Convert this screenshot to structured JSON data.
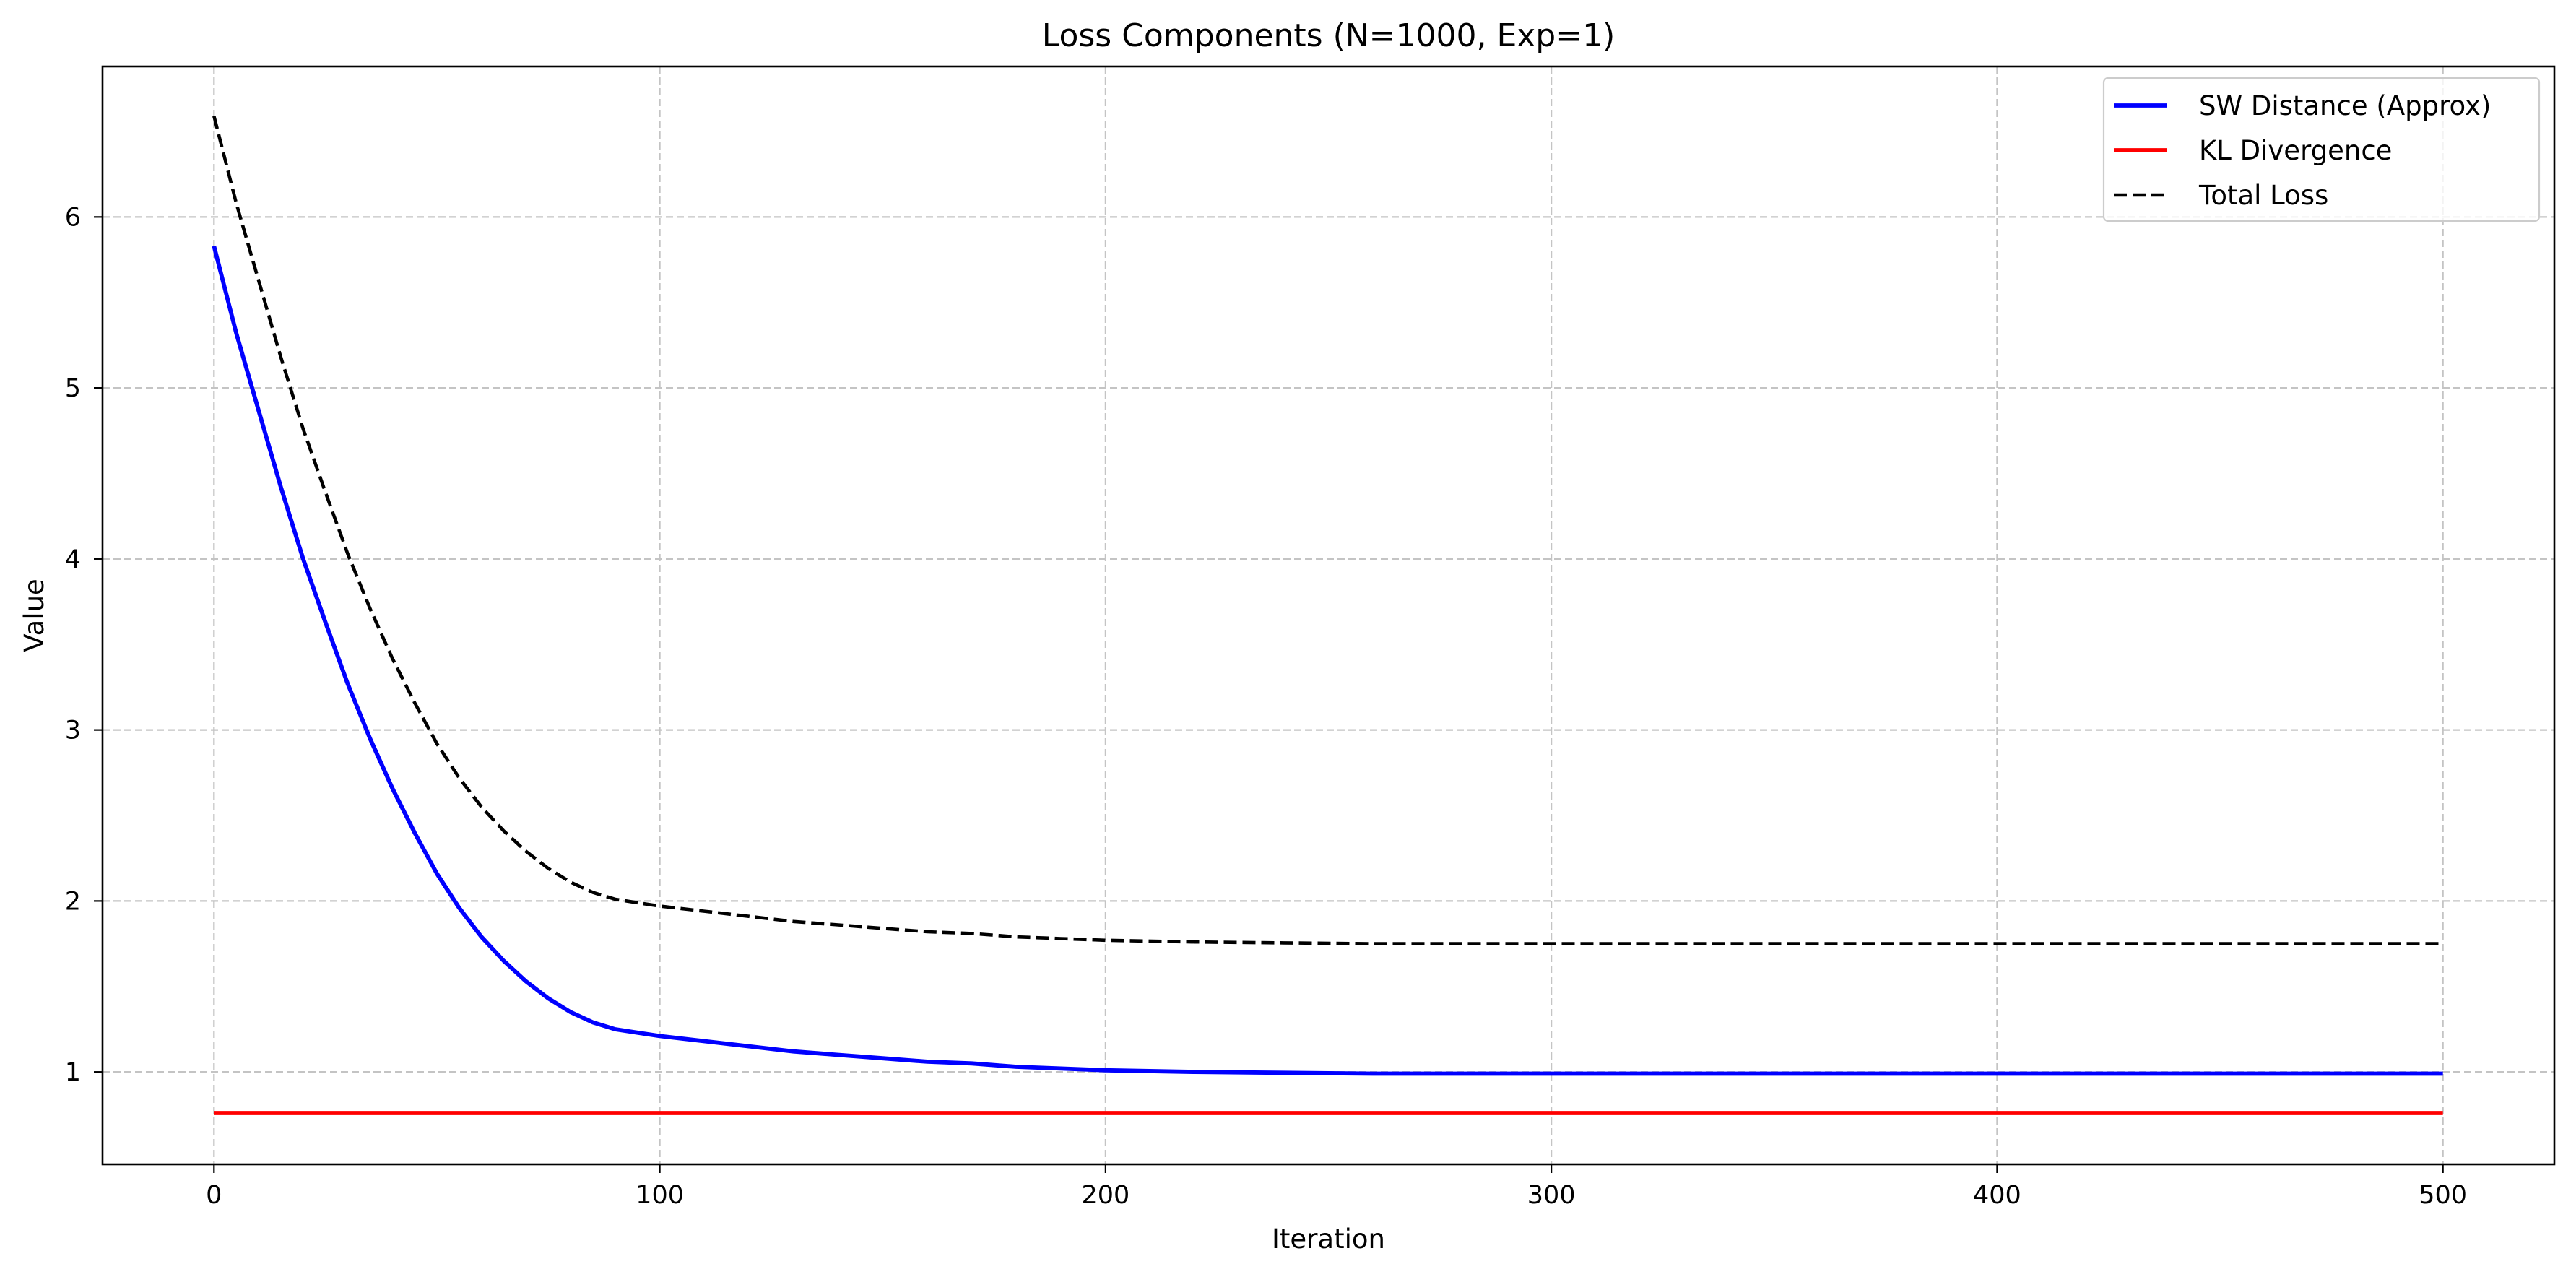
{
  "chart_data": {
    "type": "line",
    "title": "Loss Components (N=1000, Exp=1)",
    "xlabel": "Iteration",
    "ylabel": "Value",
    "xlim": [
      -25,
      525
    ],
    "ylim": [
      0.46,
      6.88
    ],
    "xticks": [
      0,
      100,
      200,
      300,
      400,
      500
    ],
    "xtick_labels": [
      "0",
      "100",
      "200",
      "300",
      "400",
      "500"
    ],
    "yticks": [
      1,
      2,
      3,
      4,
      5,
      6
    ],
    "ytick_labels": [
      "1",
      "2",
      "3",
      "4",
      "5",
      "6"
    ],
    "grid": true,
    "legend_position": "upper-right",
    "series": [
      {
        "name": "SW Distance (Approx)",
        "color": "#0000ff",
        "style": "solid",
        "x": [
          0,
          5,
          10,
          15,
          20,
          25,
          30,
          35,
          40,
          45,
          50,
          55,
          60,
          65,
          70,
          75,
          80,
          85,
          90,
          95,
          100,
          110,
          120,
          130,
          140,
          150,
          160,
          170,
          180,
          190,
          200,
          220,
          240,
          260,
          280,
          300,
          350,
          400,
          450,
          500
        ],
        "y": [
          5.83,
          5.32,
          4.87,
          4.42,
          4.0,
          3.63,
          3.27,
          2.95,
          2.66,
          2.4,
          2.16,
          1.96,
          1.79,
          1.65,
          1.53,
          1.43,
          1.35,
          1.29,
          1.25,
          1.23,
          1.21,
          1.18,
          1.15,
          1.12,
          1.1,
          1.08,
          1.06,
          1.05,
          1.03,
          1.02,
          1.01,
          1.0,
          0.995,
          0.99,
          0.99,
          0.99,
          0.99,
          0.99,
          0.99,
          0.99
        ]
      },
      {
        "name": "KL Divergence",
        "color": "#ff0000",
        "style": "solid",
        "x": [
          0,
          500
        ],
        "y": [
          0.76,
          0.76
        ]
      },
      {
        "name": "Total Loss",
        "color": "#000000",
        "style": "dashed",
        "x": [
          0,
          5,
          10,
          15,
          20,
          25,
          30,
          35,
          40,
          45,
          50,
          55,
          60,
          65,
          70,
          75,
          80,
          85,
          90,
          95,
          100,
          110,
          120,
          130,
          140,
          150,
          160,
          170,
          180,
          190,
          200,
          220,
          240,
          260,
          280,
          300,
          350,
          400,
          450,
          500
        ],
        "y": [
          6.59,
          6.08,
          5.63,
          5.18,
          4.76,
          4.39,
          4.03,
          3.71,
          3.42,
          3.16,
          2.92,
          2.72,
          2.55,
          2.41,
          2.29,
          2.19,
          2.11,
          2.05,
          2.01,
          1.99,
          1.97,
          1.94,
          1.91,
          1.88,
          1.86,
          1.84,
          1.82,
          1.81,
          1.79,
          1.78,
          1.77,
          1.76,
          1.755,
          1.75,
          1.75,
          1.75,
          1.75,
          1.75,
          1.75,
          1.75
        ]
      }
    ]
  }
}
